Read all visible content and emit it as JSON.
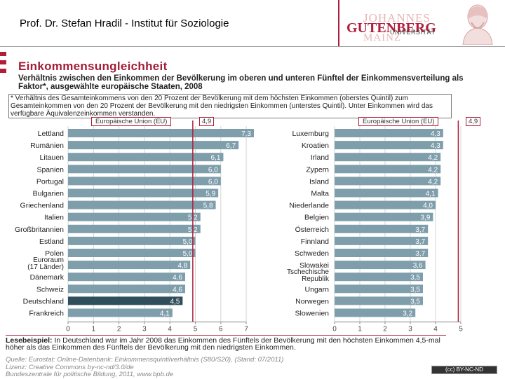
{
  "header": {
    "title": "Prof. Dr. Stefan Hradil - Institut für Soziologie",
    "logo_line1": "JOHANNES",
    "logo_line2": "GUTENBERG",
    "logo_line3": "UNIVERSITÄT",
    "logo_line4": "MAINZ"
  },
  "colors": {
    "accent": "#b01e3c",
    "bar": "#7f9eac",
    "bar_highlight": "#2f4f5c",
    "eu_line": "#b01e3c"
  },
  "main_title": "Einkommensungleichheit",
  "subtitle": "Verhältnis zwischen den Einkommen der Bevölkerung im oberen und unteren Fünftel der Einkommensverteilung als Faktor*, ausgewählte europäische Staaten, 2008",
  "definition": "* Verhältnis des Gesamteinkommens von den 20 Prozent der Bevölkerung mit dem höchsten Einkommen (oberstes Quintil) zum Gesamteinkommen von den 20 Prozent der Bevölkerung mit den niedrigsten Einkommen (unterstes Quintil). Unter Einkommen wird das verfügbare Äquivalenzeinkommen verstanden.",
  "eu_reference": {
    "label": "Europäische Union (EU)",
    "value": "4,9"
  },
  "chart_data": [
    {
      "type": "bar",
      "orientation": "horizontal",
      "categories": [
        "Lettland",
        "Rumänien",
        "Litauen",
        "Spanien",
        "Portugal",
        "Bulgarien",
        "Griechenland",
        "Italien",
        "Großbritannien",
        "Estland",
        "Polen",
        "Euroraum (17 Länder)",
        "Dänemark",
        "Schweiz",
        "Deutschland",
        "Frankreich"
      ],
      "values": [
        7.3,
        6.7,
        6.1,
        6.0,
        6.0,
        5.9,
        5.8,
        5.2,
        5.2,
        5.0,
        5.0,
        4.8,
        4.6,
        4.6,
        4.5,
        4.1
      ],
      "value_labels": [
        "7,3",
        "6,7",
        "6,1",
        "6,0",
        "6,0",
        "5,9",
        "5,8",
        "5,2",
        "5,2",
        "5,0",
        "5,0",
        "4,8",
        "4,6",
        "4,6",
        "4,5",
        "4,1"
      ],
      "highlight": "Deutschland",
      "xlim": [
        0,
        7
      ],
      "xticks": [
        "0",
        "1",
        "2",
        "3",
        "4",
        "5",
        "6",
        "7"
      ],
      "reference_line": 4.9
    },
    {
      "type": "bar",
      "orientation": "horizontal",
      "categories": [
        "Luxemburg",
        "Kroatien",
        "Irland",
        "Zypern",
        "Island",
        "Malta",
        "Niederlande",
        "Belgien",
        "Österreich",
        "Finnland",
        "Schweden",
        "Slowakei",
        "Tschechische Republik",
        "Ungarn",
        "Norwegen",
        "Slowenien"
      ],
      "values": [
        4.3,
        4.3,
        4.2,
        4.2,
        4.2,
        4.1,
        4.0,
        3.9,
        3.7,
        3.7,
        3.7,
        3.6,
        3.5,
        3.5,
        3.5,
        3.2
      ],
      "value_labels": [
        "4,3",
        "4,3",
        "4,2",
        "4,2",
        "4,2",
        "4,1",
        "4,0",
        "3,9",
        "3,7",
        "3,7",
        "3,7",
        "3,6",
        "3,5",
        "3,5",
        "3,5",
        "3,2"
      ],
      "xlim": [
        0,
        5
      ],
      "xticks": [
        "0",
        "1",
        "2",
        "3",
        "4",
        "5"
      ],
      "reference_line": 4.9
    }
  ],
  "lesebeispiel": {
    "label": "Lesebeispiel:",
    "text": "In Deutschland war im Jahr 2008 das Einkommen des Fünftels der Bevölkerung mit den höchsten Einkommen 4,5-mal höher als das Einkommen des Fünftels der Bevölkerung mit den niedrigsten Einkommen."
  },
  "source_lines": [
    "Quelle: Eurostat: Online-Datenbank: Einkommensquintilverhältnis (S80/S20), (Stand: 07/2011)",
    "Lizenz: Creative Commons by-nc-nd/3.0/de",
    "Bundeszentrale für politische Bildung, 2011, www.bpb.de"
  ],
  "license_badge": "(cc) BY-NC-ND"
}
